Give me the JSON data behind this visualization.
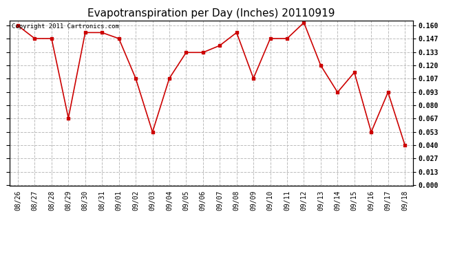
{
  "title": "Evapotranspiration per Day (Inches) 20110919",
  "copyright_text": "Copyright 2011 Cartronics.com",
  "dates": [
    "08/26",
    "08/27",
    "08/28",
    "08/29",
    "08/30",
    "08/31",
    "09/01",
    "09/02",
    "09/03",
    "09/04",
    "09/05",
    "09/06",
    "09/07",
    "09/08",
    "09/09",
    "09/10",
    "09/11",
    "09/12",
    "09/13",
    "09/14",
    "09/15",
    "09/16",
    "09/17",
    "09/18"
  ],
  "values": [
    0.16,
    0.147,
    0.147,
    0.067,
    0.153,
    0.153,
    0.147,
    0.107,
    0.053,
    0.107,
    0.133,
    0.133,
    0.14,
    0.153,
    0.107,
    0.147,
    0.147,
    0.163,
    0.12,
    0.093,
    0.113,
    0.053,
    0.093,
    0.04
  ],
  "line_color": "#cc0000",
  "marker": "s",
  "marker_size": 2.5,
  "ylim_min": 0.0,
  "ylim_max": 0.16,
  "yticks": [
    0.0,
    0.013,
    0.027,
    0.04,
    0.053,
    0.067,
    0.08,
    0.093,
    0.107,
    0.12,
    0.133,
    0.147,
    0.16
  ],
  "bg_color": "#ffffff",
  "grid_color": "#bbbbbb",
  "title_fontsize": 11,
  "tick_fontsize": 7,
  "copyright_fontsize": 6.5
}
